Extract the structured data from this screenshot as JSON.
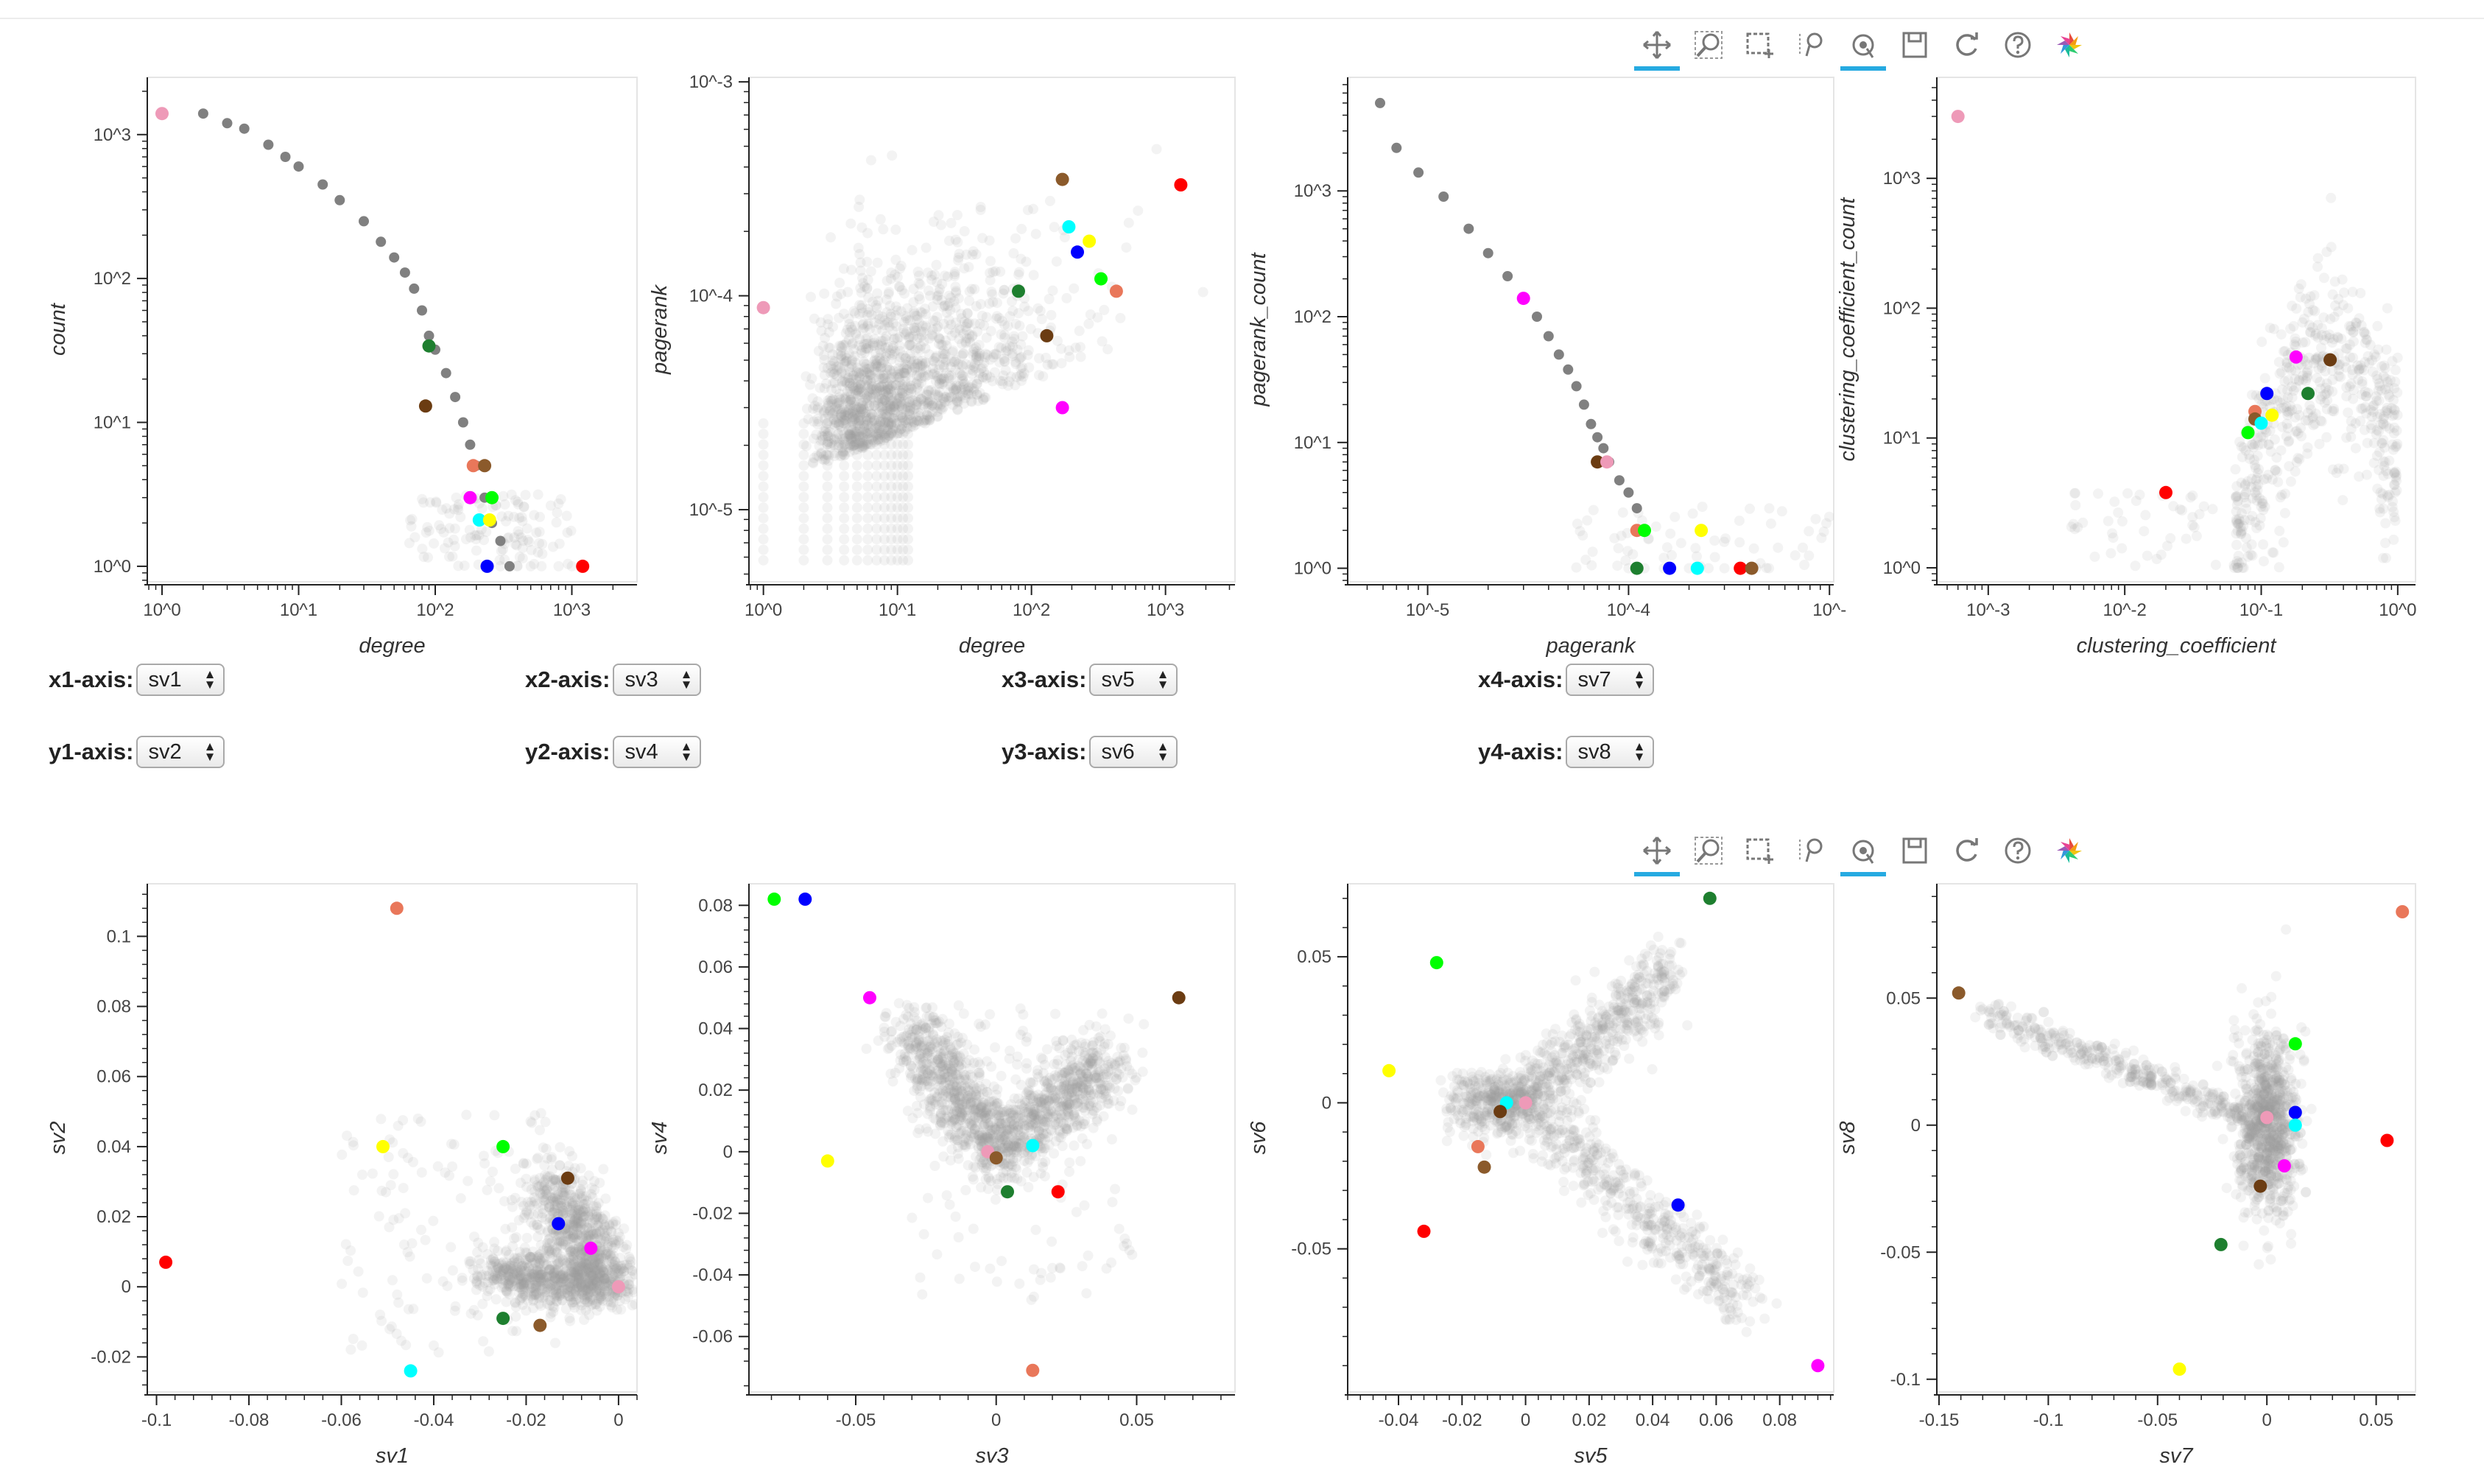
{
  "toolbar": {
    "tools": [
      {
        "name": "pan-tool",
        "icon": "pan-icon",
        "active": true
      },
      {
        "name": "wheel-zoom-tool",
        "icon": "magnifier-icon",
        "active": false
      },
      {
        "name": "box-select-tool",
        "icon": "box-select-icon",
        "active": false
      },
      {
        "name": "lasso-tool",
        "icon": "lasso-icon",
        "active": false
      },
      {
        "name": "tap-tool",
        "icon": "tap-icon",
        "active": true
      },
      {
        "name": "save-tool",
        "icon": "save-icon",
        "active": false
      },
      {
        "name": "reset-tool",
        "icon": "reset-icon",
        "active": false
      },
      {
        "name": "help-tool",
        "icon": "help-icon",
        "active": false
      },
      {
        "name": "bokeh-logo",
        "icon": "bokeh-logo-icon",
        "active": false
      }
    ],
    "accent": "#26aae1"
  },
  "selectors": [
    {
      "label": "x1-axis:",
      "value": "sv1"
    },
    {
      "label": "x2-axis:",
      "value": "sv3"
    },
    {
      "label": "x3-axis:",
      "value": "sv5"
    },
    {
      "label": "x4-axis:",
      "value": "sv7"
    },
    {
      "label": "y1-axis:",
      "value": "sv2"
    },
    {
      "label": "y2-axis:",
      "value": "sv4"
    },
    {
      "label": "y3-axis:",
      "value": "sv6"
    },
    {
      "label": "y4-axis:",
      "value": "sv8"
    }
  ],
  "chart_data": [
    {
      "id": "c1",
      "type": "scatter",
      "xlabel": "degree",
      "ylabel": "count",
      "xscale": "log",
      "yscale": "log",
      "xlim": [
        0.78,
        3000
      ],
      "ylim": [
        0.78,
        2500
      ],
      "xticks": [
        {
          "v": 1,
          "t": "10^0"
        },
        {
          "v": 10,
          "t": "10^1"
        },
        {
          "v": 100,
          "t": "10^2"
        },
        {
          "v": 1000,
          "t": "10^3"
        }
      ],
      "yticks": [
        {
          "v": 1,
          "t": "10^0"
        },
        {
          "v": 10,
          "t": "10^1"
        },
        {
          "v": 100,
          "t": "10^2"
        },
        {
          "v": 1000,
          "t": "10^3"
        }
      ],
      "curve": [
        [
          2,
          1400
        ],
        [
          3,
          1200
        ],
        [
          4,
          1100
        ],
        [
          6,
          850
        ],
        [
          8,
          700
        ],
        [
          10,
          600
        ],
        [
          15,
          450
        ],
        [
          20,
          350
        ],
        [
          30,
          250
        ],
        [
          40,
          180
        ],
        [
          50,
          140
        ],
        [
          60,
          110
        ],
        [
          70,
          85
        ],
        [
          80,
          60
        ],
        [
          90,
          40
        ],
        [
          100,
          32
        ],
        [
          120,
          22
        ],
        [
          140,
          15
        ],
        [
          160,
          10
        ],
        [
          180,
          7
        ],
        [
          200,
          5
        ],
        [
          230,
          3
        ],
        [
          260,
          2
        ],
        [
          300,
          1.5
        ],
        [
          350,
          1
        ]
      ],
      "tail": [
        [
          250,
          1
        ],
        [
          300,
          1
        ],
        [
          400,
          1
        ],
        [
          500,
          1
        ],
        [
          600,
          1
        ],
        [
          800,
          1
        ],
        [
          1000,
          1
        ]
      ],
      "highlights": [
        {
          "x": 1,
          "y": 1400,
          "c": "#ee9ab8"
        },
        {
          "x": 90,
          "y": 34,
          "c": "#1e7f2f"
        },
        {
          "x": 85,
          "y": 13,
          "c": "#6b3c12"
        },
        {
          "x": 190,
          "y": 5,
          "c": "#e9775a"
        },
        {
          "x": 230,
          "y": 5,
          "c": "#8b5a2b"
        },
        {
          "x": 180,
          "y": 3,
          "c": "#ff00ff"
        },
        {
          "x": 260,
          "y": 3,
          "c": "#00ff00"
        },
        {
          "x": 210,
          "y": 2.1,
          "c": "#00ffff"
        },
        {
          "x": 250,
          "y": 2.1,
          "c": "#ffff00"
        },
        {
          "x": 240,
          "y": 1,
          "c": "#0000ff"
        },
        {
          "x": 1200,
          "y": 1,
          "c": "#ff0000"
        }
      ]
    },
    {
      "id": "c2",
      "type": "scatter",
      "xlabel": "degree",
      "ylabel": "pagerank",
      "xscale": "log",
      "yscale": "log",
      "xlim": [
        0.78,
        3300
      ],
      "ylim": [
        4.6e-06,
        0.00105
      ],
      "xticks": [
        {
          "v": 1,
          "t": "10^0"
        },
        {
          "v": 10,
          "t": "10^1"
        },
        {
          "v": 100,
          "t": "10^2"
        },
        {
          "v": 1000,
          "t": "10^3"
        }
      ],
      "yticks": [
        {
          "v": 1e-05,
          "t": "10^-5"
        },
        {
          "v": 0.0001,
          "t": "10^-4"
        },
        {
          "v": 0.001,
          "t": "10^-3"
        }
      ],
      "highlights": [
        {
          "x": 1,
          "y": 8.8e-05,
          "c": "#ee9ab8"
        },
        {
          "x": 1300,
          "y": 0.00033,
          "c": "#ff0000"
        },
        {
          "x": 170,
          "y": 0.00035,
          "c": "#8b5a2b"
        },
        {
          "x": 190,
          "y": 0.00021,
          "c": "#00ffff"
        },
        {
          "x": 220,
          "y": 0.00016,
          "c": "#0000ff"
        },
        {
          "x": 270,
          "y": 0.00018,
          "c": "#ffff00"
        },
        {
          "x": 330,
          "y": 0.00012,
          "c": "#00ff00"
        },
        {
          "x": 430,
          "y": 0.000105,
          "c": "#e9775a"
        },
        {
          "x": 80,
          "y": 0.000105,
          "c": "#1e7f2f"
        },
        {
          "x": 130,
          "y": 6.5e-05,
          "c": "#6b3c12"
        },
        {
          "x": 170,
          "y": 3e-05,
          "c": "#ff00ff"
        }
      ]
    },
    {
      "id": "c3",
      "type": "scatter",
      "xlabel": "pagerank",
      "ylabel": "pagerank_count",
      "xscale": "log",
      "yscale": "log",
      "xlim": [
        4e-06,
        0.00105
      ],
      "ylim": [
        0.78,
        8000
      ],
      "xticks": [
        {
          "v": 1e-05,
          "t": "10^-5"
        },
        {
          "v": 0.0001,
          "t": "10^-4"
        },
        {
          "v": 0.001,
          "t": "10^-"
        }
      ],
      "yticks": [
        {
          "v": 1,
          "t": "10^0"
        },
        {
          "v": 10,
          "t": "10^1"
        },
        {
          "v": 100,
          "t": "10^2"
        },
        {
          "v": 1000,
          "t": "10^3"
        }
      ],
      "curve": [
        [
          5.8e-06,
          5000
        ],
        [
          7e-06,
          2200
        ],
        [
          9e-06,
          1400
        ],
        [
          1.2e-05,
          900
        ],
        [
          1.6e-05,
          500
        ],
        [
          2e-05,
          320
        ],
        [
          2.5e-05,
          210
        ],
        [
          3e-05,
          140
        ],
        [
          3.5e-05,
          100
        ],
        [
          4e-05,
          70
        ],
        [
          4.5e-05,
          50
        ],
        [
          5e-05,
          38
        ],
        [
          5.5e-05,
          28
        ],
        [
          6e-05,
          20
        ],
        [
          6.5e-05,
          14
        ],
        [
          7e-05,
          11
        ],
        [
          7.5e-05,
          9
        ],
        [
          8e-05,
          7
        ],
        [
          9e-05,
          5
        ],
        [
          0.0001,
          4
        ],
        [
          0.00011,
          3
        ],
        [
          0.00012,
          2
        ]
      ],
      "tail": [
        [
          0.0001,
          1
        ],
        [
          0.00012,
          1
        ],
        [
          0.00015,
          1
        ],
        [
          0.0002,
          1
        ],
        [
          0.00025,
          1
        ],
        [
          0.0003,
          1
        ],
        [
          0.0004,
          1
        ],
        [
          0.0005,
          1
        ]
      ],
      "highlights": [
        {
          "x": 3e-05,
          "y": 140,
          "c": "#ff00ff"
        },
        {
          "x": 7e-05,
          "y": 7,
          "c": "#6b3c12"
        },
        {
          "x": 7.8e-05,
          "y": 7,
          "c": "#ee9ab8"
        },
        {
          "x": 0.00011,
          "y": 2,
          "c": "#e9775a"
        },
        {
          "x": 0.00012,
          "y": 2,
          "c": "#00ff00"
        },
        {
          "x": 0.00023,
          "y": 2,
          "c": "#ffff00"
        },
        {
          "x": 0.00011,
          "y": 1,
          "c": "#1e7f2f"
        },
        {
          "x": 0.00016,
          "y": 1,
          "c": "#0000ff"
        },
        {
          "x": 0.00022,
          "y": 1,
          "c": "#00ffff"
        },
        {
          "x": 0.00036,
          "y": 1,
          "c": "#ff0000"
        },
        {
          "x": 0.00041,
          "y": 1,
          "c": "#8b5a2b"
        }
      ]
    },
    {
      "id": "c4",
      "type": "scatter",
      "xlabel": "clustering_coefficient",
      "ylabel": "clustering_coefficient_count",
      "xscale": "log",
      "yscale": "log",
      "xlim": [
        0.00042,
        1.35
      ],
      "ylim": [
        0.78,
        6000
      ],
      "xticks": [
        {
          "v": 0.001,
          "t": "10^-3"
        },
        {
          "v": 0.01,
          "t": "10^-2"
        },
        {
          "v": 0.1,
          "t": "10^-1"
        },
        {
          "v": 1,
          "t": "10^0"
        }
      ],
      "yticks": [
        {
          "v": 1,
          "t": "10^0"
        },
        {
          "v": 10,
          "t": "10^1"
        },
        {
          "v": 100,
          "t": "10^2"
        },
        {
          "v": 1000,
          "t": "10^3"
        }
      ],
      "highlights": [
        {
          "x": 0.0006,
          "y": 3000,
          "c": "#ee9ab8"
        },
        {
          "x": 0.18,
          "y": 42,
          "c": "#ff00ff"
        },
        {
          "x": 0.32,
          "y": 40,
          "c": "#6b3c12"
        },
        {
          "x": 0.22,
          "y": 22,
          "c": "#1e7f2f"
        },
        {
          "x": 0.11,
          "y": 22,
          "c": "#0000ff"
        },
        {
          "x": 0.09,
          "y": 16,
          "c": "#e9775a"
        },
        {
          "x": 0.09,
          "y": 14,
          "c": "#8b5a2b"
        },
        {
          "x": 0.12,
          "y": 15,
          "c": "#ffff00"
        },
        {
          "x": 0.1,
          "y": 13,
          "c": "#00ffff"
        },
        {
          "x": 0.08,
          "y": 11,
          "c": "#00ff00"
        },
        {
          "x": 0.02,
          "y": 3.8,
          "c": "#ff0000"
        }
      ]
    },
    {
      "id": "c5",
      "type": "scatter",
      "xlabel": "sv1",
      "ylabel": "sv2",
      "xscale": "linear",
      "yscale": "linear",
      "xlim": [
        -0.102,
        0.004
      ],
      "ylim": [
        -0.03,
        0.115
      ],
      "xticks": [
        {
          "v": -0.1,
          "t": "-0.1"
        },
        {
          "v": -0.08,
          "t": "-0.08"
        },
        {
          "v": -0.06,
          "t": "-0.06"
        },
        {
          "v": -0.04,
          "t": "-0.04"
        },
        {
          "v": -0.02,
          "t": "-0.02"
        },
        {
          "v": 0,
          "t": "0"
        }
      ],
      "yticks": [
        {
          "v": -0.02,
          "t": "-0.02"
        },
        {
          "v": 0,
          "t": "0"
        },
        {
          "v": 0.02,
          "t": "0.02"
        },
        {
          "v": 0.04,
          "t": "0.04"
        },
        {
          "v": 0.06,
          "t": "0.06"
        },
        {
          "v": 0.08,
          "t": "0.08"
        },
        {
          "v": 0.1,
          "t": "0.1"
        }
      ],
      "highlights": [
        {
          "x": -0.048,
          "y": 0.108,
          "c": "#e9775a"
        },
        {
          "x": -0.051,
          "y": 0.04,
          "c": "#ffff00"
        },
        {
          "x": -0.025,
          "y": 0.04,
          "c": "#00ff00"
        },
        {
          "x": -0.011,
          "y": 0.031,
          "c": "#6b3c12"
        },
        {
          "x": -0.013,
          "y": 0.018,
          "c": "#0000ff"
        },
        {
          "x": -0.006,
          "y": 0.011,
          "c": "#ff00ff"
        },
        {
          "x": 0.0,
          "y": 0.0,
          "c": "#ee9ab8"
        },
        {
          "x": -0.098,
          "y": 0.007,
          "c": "#ff0000"
        },
        {
          "x": -0.025,
          "y": -0.009,
          "c": "#1e7f2f"
        },
        {
          "x": -0.017,
          "y": -0.011,
          "c": "#8b5a2b"
        },
        {
          "x": -0.045,
          "y": -0.024,
          "c": "#00ffff"
        }
      ]
    },
    {
      "id": "c6",
      "type": "scatter",
      "xlabel": "sv3",
      "ylabel": "sv4",
      "xscale": "linear",
      "yscale": "linear",
      "xlim": [
        -0.088,
        0.085
      ],
      "ylim": [
        -0.078,
        0.087
      ],
      "xticks": [
        {
          "v": -0.05,
          "t": "-0.05"
        },
        {
          "v": 0,
          "t": "0"
        },
        {
          "v": 0.05,
          "t": "0.05"
        }
      ],
      "yticks": [
        {
          "v": -0.06,
          "t": "-0.06"
        },
        {
          "v": -0.04,
          "t": "-0.04"
        },
        {
          "v": -0.02,
          "t": "-0.02"
        },
        {
          "v": 0,
          "t": "0"
        },
        {
          "v": 0.02,
          "t": "0.02"
        },
        {
          "v": 0.04,
          "t": "0.04"
        },
        {
          "v": 0.06,
          "t": "0.06"
        },
        {
          "v": 0.08,
          "t": "0.08"
        }
      ],
      "highlights": [
        {
          "x": -0.079,
          "y": 0.082,
          "c": "#00ff00"
        },
        {
          "x": -0.068,
          "y": 0.082,
          "c": "#0000ff"
        },
        {
          "x": -0.045,
          "y": 0.05,
          "c": "#ff00ff"
        },
        {
          "x": 0.065,
          "y": 0.05,
          "c": "#6b3c12"
        },
        {
          "x": -0.06,
          "y": -0.003,
          "c": "#ffff00"
        },
        {
          "x": 0.013,
          "y": 0.002,
          "c": "#00ffff"
        },
        {
          "x": -0.003,
          "y": 0.0,
          "c": "#ee9ab8"
        },
        {
          "x": 0.0,
          "y": -0.002,
          "c": "#8b5a2b"
        },
        {
          "x": 0.004,
          "y": -0.013,
          "c": "#1e7f2f"
        },
        {
          "x": 0.022,
          "y": -0.013,
          "c": "#ff0000"
        },
        {
          "x": 0.013,
          "y": -0.071,
          "c": "#e9775a"
        }
      ]
    },
    {
      "id": "c7",
      "type": "scatter",
      "xlabel": "sv5",
      "ylabel": "sv6",
      "xscale": "linear",
      "yscale": "linear",
      "xlim": [
        -0.056,
        0.097
      ],
      "ylim": [
        -0.099,
        0.075
      ],
      "xticks": [
        {
          "v": -0.04,
          "t": "-0.04"
        },
        {
          "v": -0.02,
          "t": "-0.02"
        },
        {
          "v": 0,
          "t": "0"
        },
        {
          "v": 0.02,
          "t": "0.02"
        },
        {
          "v": 0.04,
          "t": "0.04"
        },
        {
          "v": 0.06,
          "t": "0.06"
        },
        {
          "v": 0.08,
          "t": "0.08"
        }
      ],
      "yticks": [
        {
          "v": -0.05,
          "t": "-0.05"
        },
        {
          "v": 0,
          "t": "0"
        },
        {
          "v": 0.05,
          "t": "0.05"
        }
      ],
      "highlights": [
        {
          "x": 0.058,
          "y": 0.07,
          "c": "#1e7f2f"
        },
        {
          "x": -0.028,
          "y": 0.048,
          "c": "#00ff00"
        },
        {
          "x": -0.043,
          "y": 0.011,
          "c": "#ffff00"
        },
        {
          "x": -0.006,
          "y": 0.0,
          "c": "#00ffff"
        },
        {
          "x": 0.0,
          "y": 0.0,
          "c": "#ee9ab8"
        },
        {
          "x": -0.015,
          "y": -0.015,
          "c": "#e9775a"
        },
        {
          "x": -0.013,
          "y": -0.022,
          "c": "#8b5a2b"
        },
        {
          "x": -0.008,
          "y": -0.003,
          "c": "#6b3c12"
        },
        {
          "x": -0.032,
          "y": -0.044,
          "c": "#ff0000"
        },
        {
          "x": 0.048,
          "y": -0.035,
          "c": "#0000ff"
        },
        {
          "x": 0.092,
          "y": -0.09,
          "c": "#ff00ff"
        }
      ]
    },
    {
      "id": "c8",
      "type": "scatter",
      "xlabel": "sv7",
      "ylabel": "sv8",
      "xscale": "linear",
      "yscale": "linear",
      "xlim": [
        -0.151,
        0.068
      ],
      "ylim": [
        -0.105,
        0.095
      ],
      "xticks": [
        {
          "v": -0.15,
          "t": "-0.15"
        },
        {
          "v": -0.1,
          "t": "-0.1"
        },
        {
          "v": -0.05,
          "t": "-0.05"
        },
        {
          "v": 0,
          "t": "0"
        },
        {
          "v": 0.05,
          "t": "0.05"
        }
      ],
      "yticks": [
        {
          "v": -0.1,
          "t": "-0.1"
        },
        {
          "v": -0.05,
          "t": "-0.05"
        },
        {
          "v": 0,
          "t": "0"
        },
        {
          "v": 0.05,
          "t": "0.05"
        }
      ],
      "highlights": [
        {
          "x": 0.062,
          "y": 0.084,
          "c": "#e9775a"
        },
        {
          "x": -0.141,
          "y": 0.052,
          "c": "#8b5a2b"
        },
        {
          "x": 0.013,
          "y": 0.032,
          "c": "#00ff00"
        },
        {
          "x": 0.013,
          "y": 0.005,
          "c": "#0000ff"
        },
        {
          "x": 0.013,
          "y": 0.0,
          "c": "#00ffff"
        },
        {
          "x": 0.0,
          "y": 0.003,
          "c": "#ee9ab8"
        },
        {
          "x": 0.055,
          "y": -0.006,
          "c": "#ff0000"
        },
        {
          "x": 0.008,
          "y": -0.016,
          "c": "#ff00ff"
        },
        {
          "x": -0.003,
          "y": -0.024,
          "c": "#6b3c12"
        },
        {
          "x": -0.021,
          "y": -0.047,
          "c": "#1e7f2f"
        },
        {
          "x": -0.04,
          "y": -0.096,
          "c": "#ffff00"
        }
      ]
    }
  ]
}
